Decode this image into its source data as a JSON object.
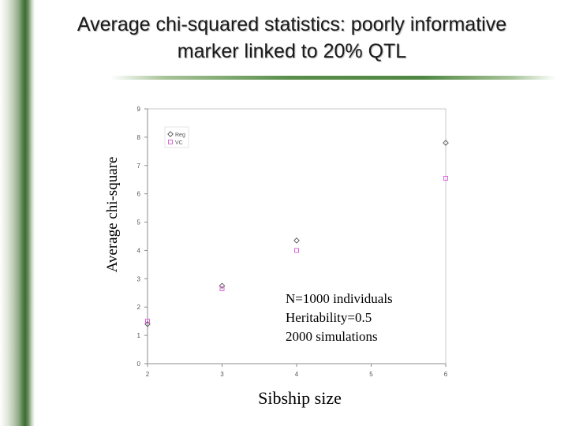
{
  "title": "Average chi-squared statistics: poorly informative marker linked to 20% QTL",
  "chart_data": {
    "type": "scatter",
    "xlabel": "Sibship size",
    "ylabel": "Average chi-square",
    "xlim": [
      2,
      6
    ],
    "ylim": [
      0,
      9
    ],
    "xticks": [
      2,
      3,
      4,
      5,
      6
    ],
    "yticks": [
      0,
      1,
      2,
      3,
      4,
      5,
      6,
      7,
      8,
      9
    ],
    "grid": false,
    "legend_position": "top-left",
    "series": [
      {
        "name": "Reg",
        "marker": "diamond",
        "color": "#555555",
        "x": [
          2,
          3,
          4,
          6
        ],
        "y": [
          1.4,
          2.75,
          4.35,
          7.8
        ]
      },
      {
        "name": "VC",
        "marker": "square",
        "color": "#d957d9",
        "x": [
          2,
          3,
          4,
          6
        ],
        "y": [
          1.5,
          2.65,
          4.0,
          6.55
        ]
      }
    ],
    "annotations": [
      "N=1000 individuals",
      "Heritability=0.5",
      "2000 simulations"
    ]
  }
}
